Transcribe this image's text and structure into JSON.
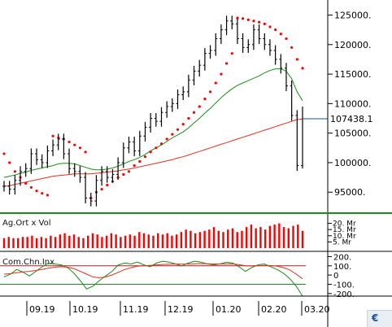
{
  "chart_data": [
    {
      "type": "line",
      "panel": "price",
      "ylim": [
        92000,
        127000
      ],
      "yticks": [
        "125000.",
        "120000.",
        "115000.",
        "110000.",
        "105000.",
        "100000.",
        "95000."
      ],
      "ytick_values": [
        125000,
        120000,
        115000,
        110000,
        105000,
        100000,
        95000
      ],
      "last_price_label": "107438.1",
      "last_price": 107438.1,
      "x_labels": [
        "09.19",
        "10.19",
        "11.19",
        "12.19",
        "01.20",
        "02.20",
        "03.20"
      ],
      "colors": {
        "price": "#000000",
        "ma_short": "#1a8c1a",
        "ma_long": "#e03020",
        "sar": "#ff0000",
        "last": "#1b4fa8"
      },
      "series": [
        {
          "key": "price",
          "values": [
            96000,
            95500,
            97000,
            98500,
            99000,
            101500,
            100500,
            100000,
            102000,
            103000,
            104000,
            101500,
            99000,
            98500,
            97500,
            94000,
            93500,
            97000,
            98500,
            97500,
            98000,
            100000,
            102500,
            103500,
            102000,
            104500,
            106000,
            107500,
            107000,
            108500,
            109500,
            110000,
            111500,
            112000,
            114000,
            115500,
            116500,
            118500,
            119000,
            121000,
            122500,
            124000,
            123500,
            121000,
            119500,
            120000,
            122500,
            121000,
            120000,
            119000,
            117500,
            116000,
            113000,
            108000,
            99500,
            107438
          ]
        },
        {
          "key": "ma_short",
          "values": [
            97500,
            97700,
            97900,
            98200,
            98400,
            98700,
            98900,
            99100,
            99300,
            99500,
            99800,
            99900,
            99900,
            99800,
            99500,
            99200,
            98900,
            98800,
            98800,
            98900,
            99100,
            99400,
            99800,
            100200,
            100500,
            100900,
            101400,
            102000,
            102500,
            103000,
            103600,
            104200,
            104700,
            105200,
            105900,
            106700,
            107500,
            108400,
            109200,
            110100,
            111000,
            111800,
            112500,
            113100,
            113500,
            113900,
            114300,
            114700,
            115200,
            115600,
            115900,
            115900,
            115500,
            114200,
            112000,
            110500
          ]
        },
        {
          "key": "ma_long",
          "values": [
            96000,
            96100,
            96300,
            96500,
            96700,
            96900,
            97100,
            97300,
            97500,
            97700,
            97800,
            97900,
            98000,
            98100,
            98100,
            98100,
            98100,
            98200,
            98300,
            98400,
            98500,
            98600,
            98800,
            98900,
            99100,
            99300,
            99500,
            99700,
            99900,
            100100,
            100300,
            100500,
            100800,
            101000,
            101300,
            101600,
            101900,
            102200,
            102500,
            102800,
            103100,
            103400,
            103700,
            104000,
            104300,
            104600,
            104900,
            105200,
            105500,
            105800,
            106100,
            106400,
            106700,
            107000,
            107300,
            107400
          ]
        },
        {
          "key": "sar",
          "values": [
            101500,
            100000,
            98500,
            97500,
            96500,
            95800,
            95200,
            94800,
            94500,
            104500,
            104200,
            104000,
            103500,
            103000,
            102500,
            101800,
            94000,
            95000,
            95500,
            96200,
            96800,
            97500,
            98000,
            98500,
            99500,
            100200,
            101000,
            101800,
            102500,
            103200,
            104000,
            104800,
            105600,
            106500,
            107500,
            108500,
            109500,
            110800,
            112000,
            113500,
            115000,
            116800,
            118500,
            124500,
            124400,
            124200,
            124000,
            123800,
            123500,
            123000,
            122500,
            121800,
            121000,
            119500,
            117500,
            116000
          ]
        }
      ]
    },
    {
      "type": "bar",
      "panel": "volume",
      "label": "Ag.Ort x Vol",
      "ylim": [
        0,
        25
      ],
      "yticks": [
        "20. Mr",
        "15. Mr",
        "10. Mr",
        "5. Mr"
      ],
      "ytick_values": [
        20,
        15,
        10,
        5
      ],
      "colors": {
        "bar": "#ff0000",
        "ma": "#1a8c1a"
      },
      "values": [
        8,
        9,
        8,
        8,
        9,
        9,
        10,
        8,
        9,
        8,
        10,
        9,
        11,
        12,
        10,
        11,
        9,
        8,
        10,
        12,
        11,
        9,
        10,
        12,
        11,
        9,
        10,
        11,
        10,
        13,
        12,
        11,
        10,
        12,
        11,
        12,
        10,
        11,
        13,
        15,
        14,
        12,
        13,
        14,
        15,
        17,
        14,
        13,
        15,
        16,
        13,
        14,
        17,
        19,
        16,
        17,
        15,
        18,
        19,
        20,
        17,
        16,
        18,
        19,
        14
      ]
    },
    {
      "type": "line",
      "panel": "cci",
      "label": "Com.Chn.Inx",
      "ylim": [
        -210,
        230
      ],
      "yticks": [
        "200.",
        "100.",
        "0",
        "-100.",
        "-200."
      ],
      "ytick_values": [
        200,
        100,
        0,
        -100,
        -200
      ],
      "reference_lines": [
        100,
        -100
      ],
      "colors": {
        "cci": "#1a8c1a",
        "signal": "#e03020",
        "reference": "#a02020"
      },
      "series": [
        {
          "key": "cci",
          "values": [
            -20,
            10,
            60,
            30,
            -10,
            40,
            90,
            130,
            120,
            110,
            80,
            20,
            -60,
            -150,
            -120,
            -60,
            -10,
            40,
            110,
            130,
            120,
            140,
            110,
            90,
            130,
            150,
            140,
            120,
            100,
            130,
            150,
            140,
            120,
            110,
            120,
            140,
            130,
            90,
            40,
            80,
            110,
            120,
            90,
            60,
            20,
            -40,
            -120,
            -260
          ]
        },
        {
          "key": "signal",
          "values": [
            10,
            15,
            25,
            35,
            40,
            50,
            60,
            75,
            85,
            90,
            85,
            70,
            40,
            10,
            -20,
            -30,
            -20,
            0,
            30,
            60,
            80,
            95,
            100,
            105,
            110,
            115,
            118,
            120,
            118,
            120,
            122,
            124,
            122,
            120,
            120,
            122,
            120,
            112,
            100,
            98,
            100,
            104,
            102,
            95,
            80,
            55,
            10,
            -40
          ]
        }
      ]
    }
  ]
}
